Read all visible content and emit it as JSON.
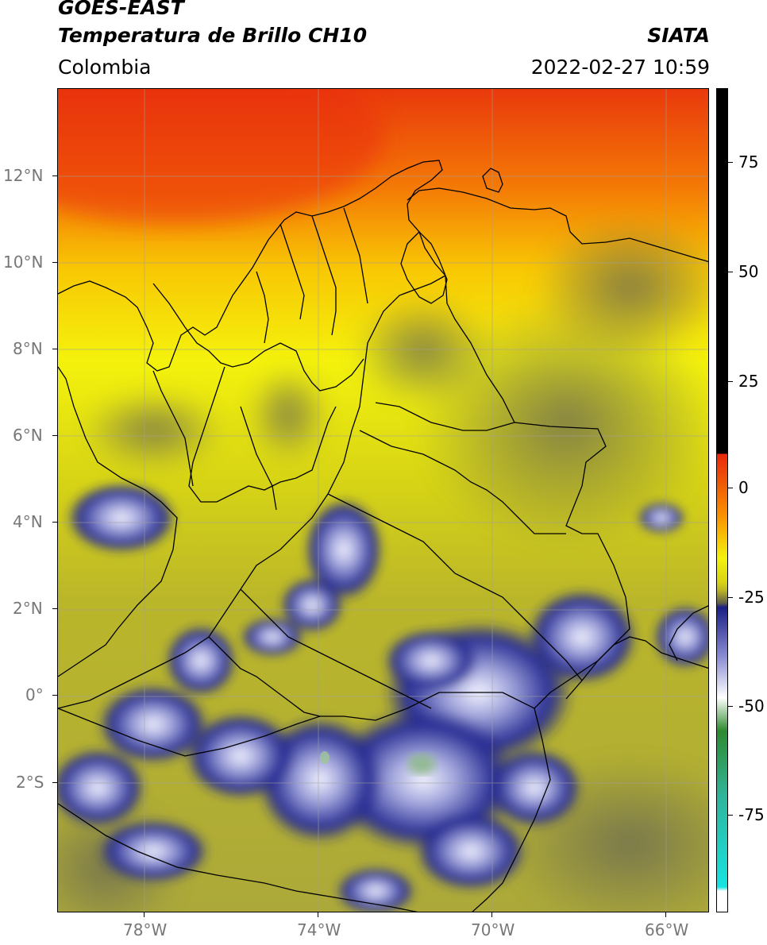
{
  "header": {
    "satellite": "GOES-EAST",
    "product": "Temperatura de Brillo CH10",
    "region": "Colombia",
    "organization": "SIATA",
    "timestamp": "2022-02-27 10:59"
  },
  "map": {
    "lat_labels": [
      "12°N",
      "10°N",
      "8°N",
      "6°N",
      "4°N",
      "2°N",
      "0°",
      "2°S"
    ],
    "lon_labels": [
      "78°W",
      "74°W",
      "70°W",
      "66°W"
    ]
  },
  "colorbar": {
    "labels": [
      "75",
      "50",
      "25",
      "0",
      "-25",
      "-50",
      "-75"
    ],
    "colors": {
      "black": "#000000",
      "red": "#e9270c",
      "orange": "#f99300",
      "yellow": "#f4f20c",
      "olive": "#b8b325",
      "gray": "#5f5d4a",
      "navy": "#1b1f84",
      "lavender": "#cfd0ef",
      "white": "#ffffff",
      "green": "#2e8b2e",
      "teal": "#2fb59b",
      "cyan": "#17e3e0"
    }
  }
}
